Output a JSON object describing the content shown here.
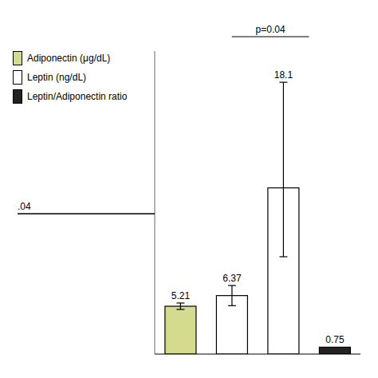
{
  "chart_data": {
    "type": "bar",
    "categories": [
      null,
      null,
      null,
      null
    ],
    "series": [
      {
        "name": "Adiponectin (μg/dL)",
        "color": "#d4db8e",
        "values": [
          5.21,
          null,
          null,
          null
        ],
        "error_up": [
          0.35,
          null,
          null,
          null
        ],
        "error_down": [
          0.35,
          null,
          null,
          null
        ]
      },
      {
        "name": "Leptin (ng/dL)",
        "color": "#ffffff",
        "values": [
          null,
          6.37,
          18.1,
          null
        ],
        "error_up": [
          null,
          1.1,
          11.5,
          null
        ],
        "error_down": [
          null,
          1.1,
          7.5,
          null
        ]
      },
      {
        "name": "Leptin/Adiponectin ratio",
        "color": "#222222",
        "values": [
          null,
          null,
          null,
          0.75
        ],
        "error_up": [
          null,
          null,
          null,
          0.0
        ],
        "error_down": [
          null,
          null,
          null,
          0.0
        ]
      }
    ],
    "stacked": true,
    "ylim": [
      0,
      33
    ],
    "tick_labels": false,
    "data_labels": true,
    "legend": "upper left",
    "annotations": [
      "p=0.04",
      ".04"
    ]
  }
}
